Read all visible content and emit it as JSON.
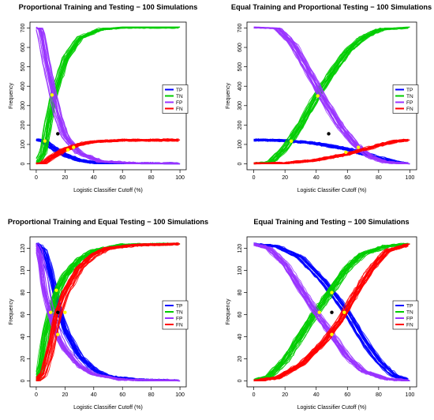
{
  "chart_data": [
    {
      "type": "line",
      "title": "Proportional Training and Testing − 100 Simulations",
      "xlabel": "Logistic Classifier Cutoff (%)",
      "ylabel": "Frequency",
      "xlim": [
        0,
        100
      ],
      "ylim": [
        0,
        700
      ],
      "xticks": [
        "0",
        "20",
        "40",
        "60",
        "80",
        "100"
      ],
      "yticks": [
        "0",
        "100",
        "200",
        "300",
        "400",
        "500",
        "600",
        "700"
      ],
      "legend": {
        "position": "right",
        "entries": [
          "TP",
          "TN",
          "FP",
          "FN"
        ]
      },
      "series": [
        {
          "name": "TP",
          "color": "#0000ff",
          "x": [
            0,
            5,
            10,
            20,
            30,
            40,
            60,
            100
          ],
          "y": [
            123,
            120,
            90,
            45,
            18,
            6,
            1,
            0
          ]
        },
        {
          "name": "TN",
          "color": "#00cc00",
          "x": [
            0,
            5,
            8,
            12,
            20,
            30,
            45,
            60,
            100
          ],
          "y": [
            0,
            60,
            200,
            355,
            540,
            650,
            695,
            705,
            705
          ]
        },
        {
          "name": "FP",
          "color": "#9933ff",
          "x": [
            0,
            3,
            6,
            10,
            15,
            20,
            30,
            45,
            70,
            100
          ],
          "y": [
            705,
            690,
            560,
            420,
            250,
            140,
            55,
            12,
            2,
            0
          ]
        },
        {
          "name": "FN",
          "color": "#ff0000",
          "x": [
            0,
            5,
            10,
            20,
            30,
            40,
            60,
            100
          ],
          "y": [
            0,
            3,
            30,
            75,
            100,
            115,
            122,
            123
          ]
        }
      ],
      "points": [
        {
          "color": "#ffff00",
          "x": 6,
          "y": 118
        },
        {
          "color": "#ffff00",
          "x": 11,
          "y": 355
        },
        {
          "color": "#ffff00",
          "x": 22,
          "y": 72
        },
        {
          "color": "#ffff00",
          "x": 26,
          "y": 85
        },
        {
          "color": "#000000",
          "x": 15,
          "y": 155
        }
      ]
    },
    {
      "type": "line",
      "title": "Equal Training and Proportional Testing − 100 Simulations",
      "xlabel": "Logistic Classifier Cutoff (%)",
      "ylabel": "Frequency",
      "xlim": [
        0,
        100
      ],
      "ylim": [
        0,
        700
      ],
      "xticks": [
        "0",
        "20",
        "40",
        "60",
        "80",
        "100"
      ],
      "yticks": [
        "0",
        "100",
        "200",
        "300",
        "400",
        "500",
        "600",
        "700"
      ],
      "legend": {
        "position": "right",
        "entries": [
          "TP",
          "TN",
          "FP",
          "FN"
        ]
      },
      "series": [
        {
          "name": "TP",
          "color": "#0000ff",
          "x": [
            0,
            20,
            40,
            60,
            80,
            90,
            100
          ],
          "y": [
            123,
            120,
            105,
            75,
            30,
            10,
            0
          ]
        },
        {
          "name": "TN",
          "color": "#00cc00",
          "x": [
            0,
            10,
            20,
            30,
            40,
            50,
            60,
            70,
            80,
            90,
            100
          ],
          "y": [
            0,
            5,
            80,
            200,
            345,
            470,
            580,
            650,
            690,
            700,
            705
          ]
        },
        {
          "name": "FP",
          "color": "#9933ff",
          "x": [
            0,
            15,
            25,
            35,
            45,
            55,
            65,
            75,
            85,
            100
          ],
          "y": [
            705,
            700,
            620,
            480,
            330,
            200,
            100,
            35,
            8,
            0
          ]
        },
        {
          "name": "FN",
          "color": "#ff0000",
          "x": [
            0,
            20,
            40,
            60,
            80,
            90,
            100
          ],
          "y": [
            0,
            3,
            18,
            50,
            95,
            115,
            123
          ]
        }
      ],
      "points": [
        {
          "color": "#ffff00",
          "x": 24,
          "y": 117
        },
        {
          "color": "#ffff00",
          "x": 41,
          "y": 350
        },
        {
          "color": "#ffff00",
          "x": 59,
          "y": 60
        },
        {
          "color": "#ffff00",
          "x": 67,
          "y": 85
        },
        {
          "color": "#000000",
          "x": 48,
          "y": 155
        }
      ]
    },
    {
      "type": "line",
      "title": "Proportional Training and Equal Testing − 100 Simulations",
      "xlabel": "Logistic Classifier Cutoff (%)",
      "ylabel": "Frequency",
      "xlim": [
        0,
        100
      ],
      "ylim": [
        0,
        125
      ],
      "xticks": [
        "0",
        "20",
        "40",
        "60",
        "80",
        "100"
      ],
      "yticks": [
        "0",
        "20",
        "40",
        "60",
        "80",
        "100",
        "120"
      ],
      "legend": {
        "position": "right",
        "entries": [
          "TP",
          "TN",
          "FP",
          "FN"
        ]
      },
      "series": [
        {
          "name": "TP",
          "color": "#0000ff",
          "x": [
            0,
            5,
            10,
            15,
            20,
            30,
            40,
            50,
            70,
            100
          ],
          "y": [
            124,
            118,
            95,
            65,
            45,
            22,
            10,
            4,
            1,
            0
          ]
        },
        {
          "name": "TN",
          "color": "#00cc00",
          "x": [
            0,
            3,
            6,
            10,
            15,
            20,
            30,
            40,
            60,
            100
          ],
          "y": [
            0,
            10,
            40,
            62,
            82,
            95,
            110,
            118,
            123,
            124
          ]
        },
        {
          "name": "FP",
          "color": "#9933ff",
          "x": [
            0,
            3,
            6,
            10,
            15,
            20,
            30,
            40,
            60,
            100
          ],
          "y": [
            124,
            114,
            84,
            62,
            42,
            29,
            14,
            6,
            1,
            0
          ]
        },
        {
          "name": "FN",
          "color": "#ff0000",
          "x": [
            0,
            5,
            10,
            15,
            20,
            30,
            40,
            50,
            70,
            100
          ],
          "y": [
            0,
            6,
            29,
            60,
            79,
            102,
            114,
            120,
            123,
            124
          ]
        }
      ],
      "points": [
        {
          "color": "#ffff00",
          "x": 10,
          "y": 62
        },
        {
          "color": "#ffff00",
          "x": 14,
          "y": 82
        },
        {
          "color": "#ffff00",
          "x": 15,
          "y": 42
        },
        {
          "color": "#ffff00",
          "x": 20,
          "y": 62
        },
        {
          "color": "#000000",
          "x": 15,
          "y": 62
        }
      ]
    },
    {
      "type": "line",
      "title": "Equal Training and Testing − 100 Simulations",
      "xlabel": "Logistic Classifier Cutoff (%)",
      "ylabel": "Frequency",
      "xlim": [
        0,
        100
      ],
      "ylim": [
        0,
        125
      ],
      "xticks": [
        "0",
        "20",
        "40",
        "60",
        "80",
        "100"
      ],
      "yticks": [
        "0",
        "20",
        "40",
        "60",
        "80",
        "100",
        "120"
      ],
      "legend": {
        "position": "right",
        "entries": [
          "TP",
          "TN",
          "FP",
          "FN"
        ]
      },
      "series": [
        {
          "name": "TP",
          "color": "#0000ff",
          "x": [
            0,
            15,
            30,
            45,
            60,
            70,
            80,
            90,
            100
          ],
          "y": [
            124,
            122,
            112,
            90,
            62,
            38,
            18,
            5,
            0
          ]
        },
        {
          "name": "TN",
          "color": "#00cc00",
          "x": [
            0,
            10,
            20,
            30,
            40,
            50,
            60,
            70,
            85,
            100
          ],
          "y": [
            0,
            4,
            18,
            40,
            62,
            82,
            102,
            115,
            122,
            124
          ]
        },
        {
          "name": "FP",
          "color": "#9933ff",
          "x": [
            0,
            10,
            20,
            30,
            40,
            50,
            60,
            70,
            85,
            100
          ],
          "y": [
            124,
            120,
            106,
            84,
            62,
            42,
            22,
            9,
            2,
            0
          ]
        },
        {
          "name": "FN",
          "color": "#ff0000",
          "x": [
            0,
            15,
            30,
            45,
            55,
            65,
            75,
            85,
            100
          ],
          "y": [
            0,
            3,
            15,
            36,
            55,
            80,
            102,
            118,
            124
          ]
        }
      ],
      "points": [
        {
          "color": "#ffff00",
          "x": 42,
          "y": 62
        },
        {
          "color": "#ffff00",
          "x": 50,
          "y": 80
        },
        {
          "color": "#ffff00",
          "x": 50,
          "y": 42
        },
        {
          "color": "#ffff00",
          "x": 58,
          "y": 62
        },
        {
          "color": "#000000",
          "x": 50,
          "y": 62
        }
      ]
    }
  ]
}
